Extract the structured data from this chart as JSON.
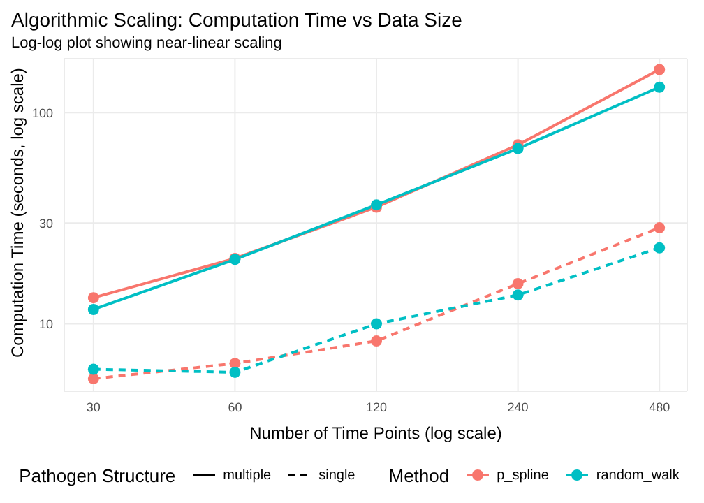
{
  "chart_data": {
    "type": "line",
    "title": "Algorithmic Scaling: Computation Time vs Data Size",
    "subtitle": "Log-log plot showing near-linear scaling",
    "xlabel": "Number of Time Points (log scale)",
    "ylabel": "Computation Time (seconds, log scale)",
    "legend_title": "Method",
    "annotations": [
      "Pathogen Structure",
      "multiple",
      "single"
    ],
    "x": [
      30,
      60,
      120,
      240,
      480
    ],
    "xlim": [
      26,
      550
    ],
    "xticks": [
      30,
      60,
      120,
      240,
      480
    ],
    "ylim": [
      4.8,
      180
    ],
    "yticks": [
      10,
      30,
      100
    ],
    "log": "xy",
    "grid": true,
    "legend": "bottom",
    "marker": "circle",
    "series": [
      {
        "name": "p_spline",
        "color": "#f8766d",
        "line_style": "solid",
        "values": [
          13.3,
          20.4,
          35.7,
          70.4,
          160
        ]
      },
      {
        "name": "random_walk",
        "color": "#00bfc4",
        "line_style": "solid",
        "values": [
          11.7,
          20.2,
          36.6,
          67.6,
          132
        ]
      },
      {
        "color": "#f8766d",
        "line_style": "dashed",
        "values": [
          5.5,
          6.5,
          8.3,
          15.5,
          28.5
        ]
      },
      {
        "color": "#00bfc4",
        "line_style": "dashed",
        "values": [
          6.1,
          5.9,
          10,
          13.7,
          22.9
        ]
      }
    ]
  }
}
